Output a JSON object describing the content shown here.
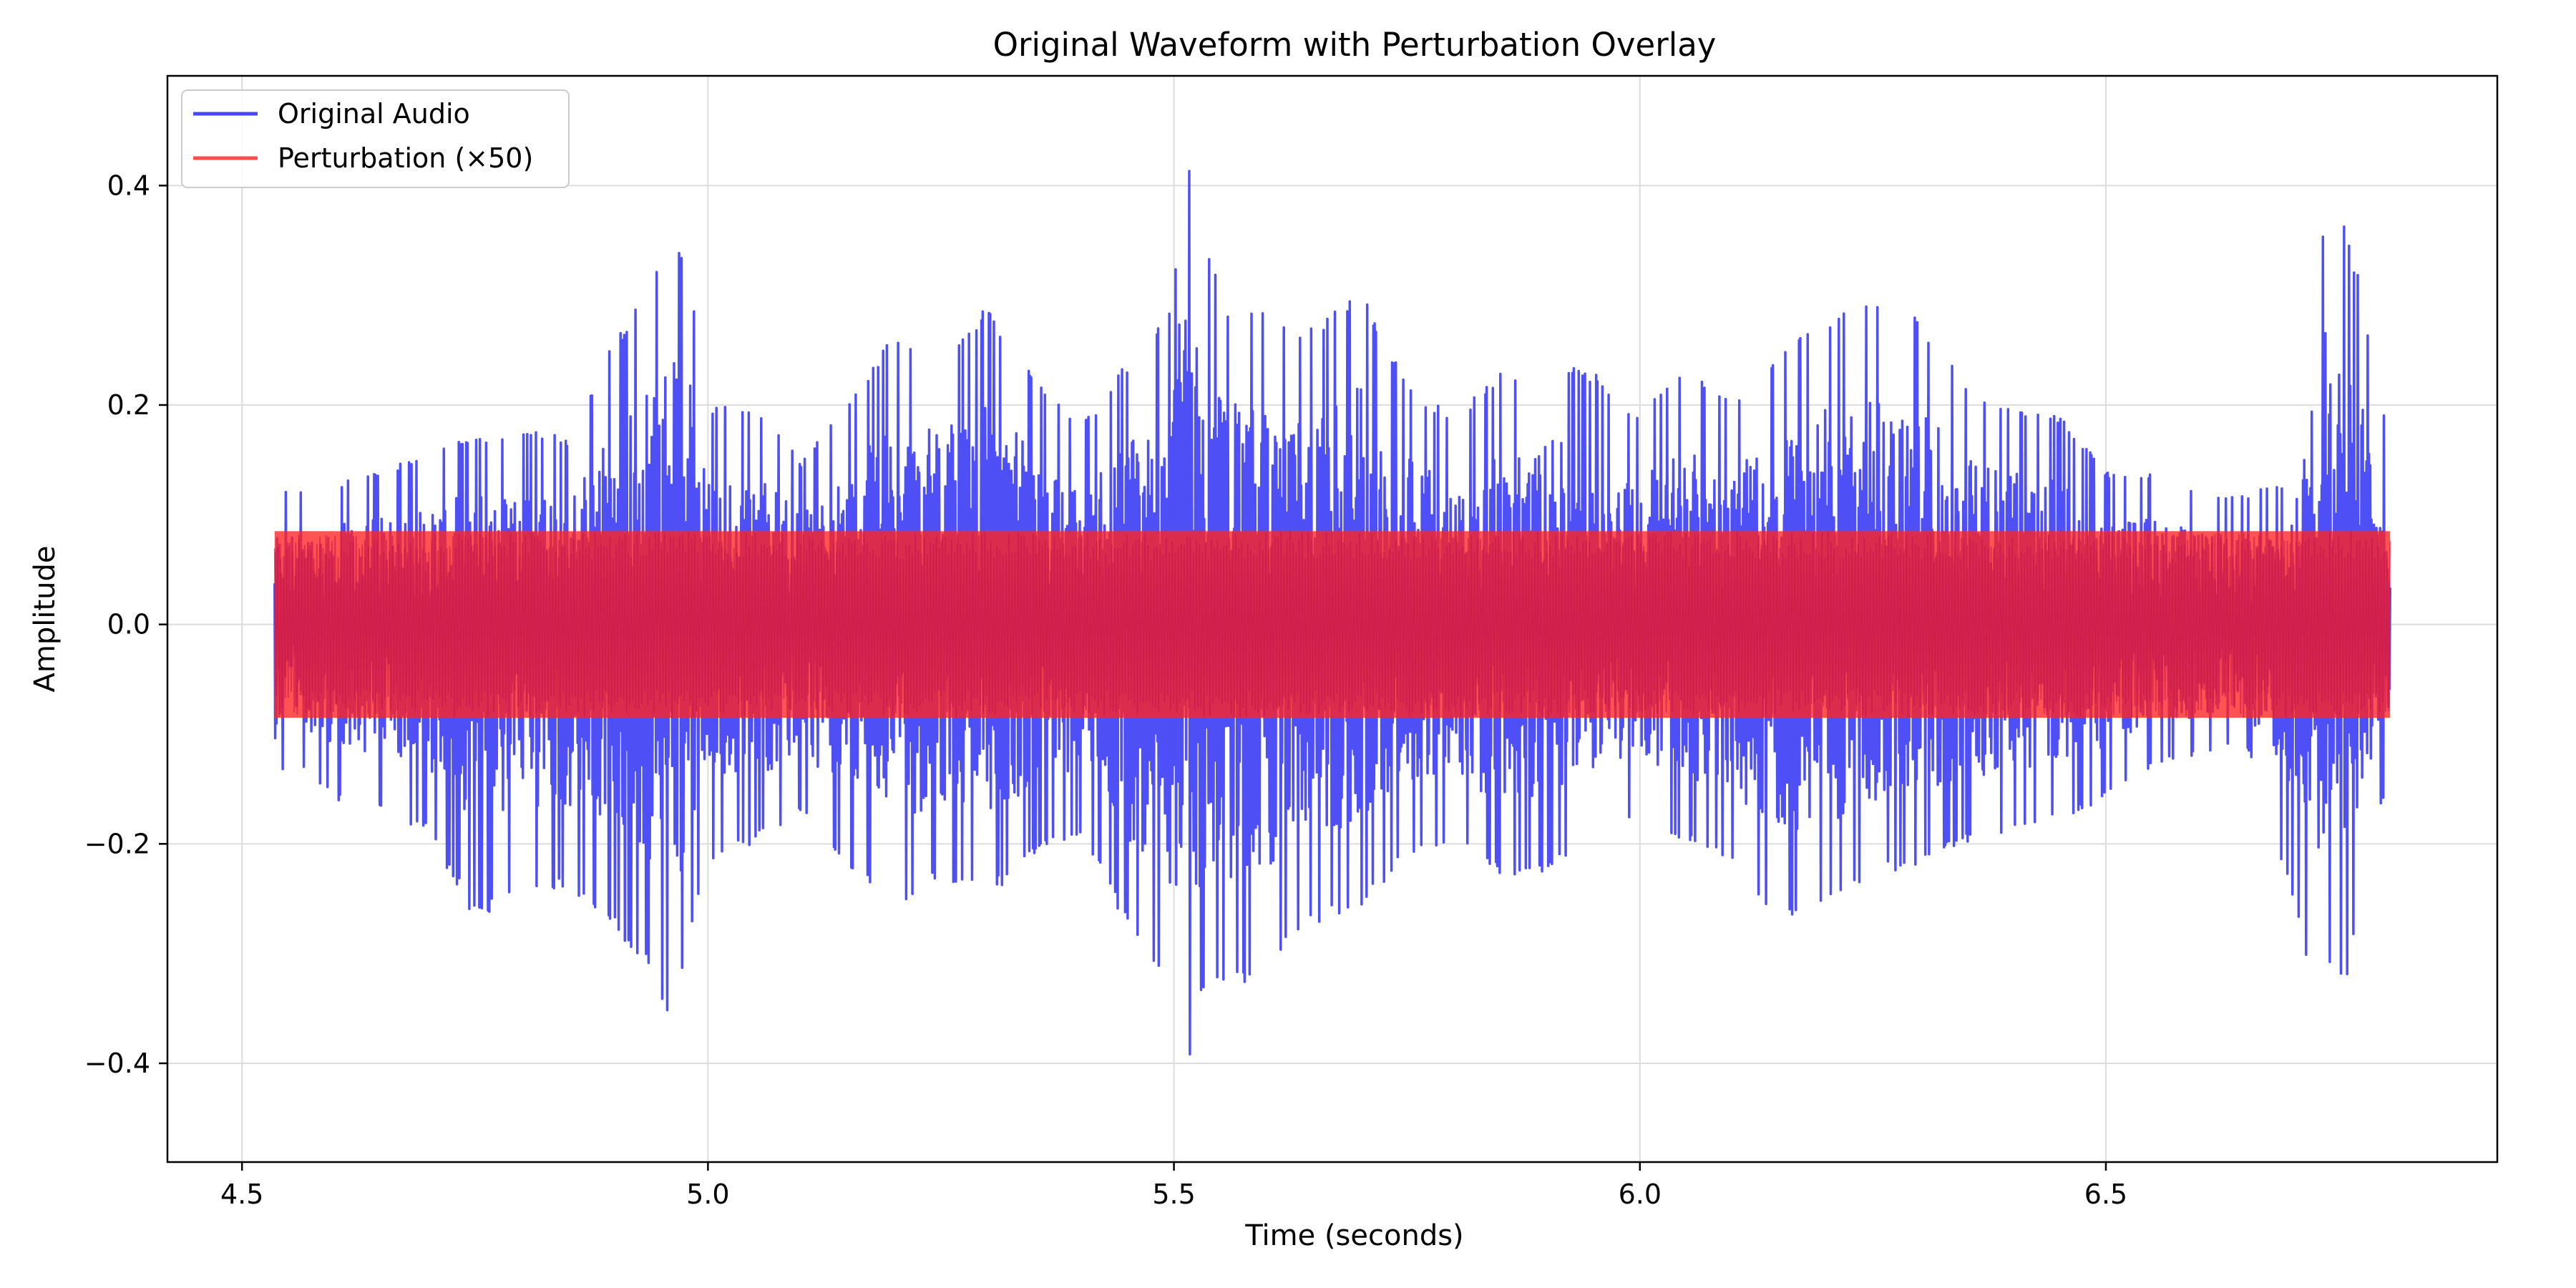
{
  "chart_data": {
    "type": "line",
    "title": "Original Waveform with Perturbation Overlay",
    "xlabel": "Time (seconds)",
    "ylabel": "Amplitude",
    "xlim": [
      4.42,
      6.92
    ],
    "ylim": [
      -0.49,
      0.5
    ],
    "x_ticks": [
      4.5,
      5.0,
      5.5,
      6.0,
      6.5
    ],
    "x_tick_labels": [
      "4.5",
      "5.0",
      "5.5",
      "6.0",
      "6.5"
    ],
    "y_ticks": [
      0.4,
      0.2,
      0.0,
      -0.2,
      -0.4
    ],
    "y_tick_labels": [
      "0.4",
      "0.2",
      "0.0",
      "−0.2",
      "−0.4"
    ],
    "grid": true,
    "legend_position": "top-left",
    "x_range": [
      4.535,
      6.805
    ],
    "series": [
      {
        "name": "Original Audio",
        "color": "#4646f5",
        "envelope": {
          "x": [
            4.535,
            4.55,
            4.6,
            4.65,
            4.7,
            4.75,
            4.8,
            4.85,
            4.9,
            4.93,
            4.96,
            4.98,
            5.0,
            5.05,
            5.1,
            5.15,
            5.2,
            5.25,
            5.3,
            5.35,
            5.4,
            5.45,
            5.5,
            5.51,
            5.53,
            5.56,
            5.6,
            5.63,
            5.66,
            5.7,
            5.75,
            5.8,
            5.85,
            5.9,
            5.95,
            6.0,
            6.05,
            6.1,
            6.15,
            6.2,
            6.25,
            6.3,
            6.35,
            6.4,
            6.45,
            6.5,
            6.55,
            6.6,
            6.65,
            6.7,
            6.72,
            6.74,
            6.76,
            6.78,
            6.805
          ],
          "upper": [
            0.14,
            0.12,
            0.13,
            0.14,
            0.16,
            0.17,
            0.18,
            0.17,
            0.26,
            0.3,
            0.35,
            0.33,
            0.2,
            0.2,
            0.15,
            0.2,
            0.27,
            0.25,
            0.29,
            0.23,
            0.18,
            0.24,
            0.3,
            0.46,
            0.35,
            0.29,
            0.29,
            0.26,
            0.28,
            0.31,
            0.22,
            0.19,
            0.23,
            0.24,
            0.23,
            0.19,
            0.24,
            0.2,
            0.25,
            0.28,
            0.3,
            0.28,
            0.22,
            0.2,
            0.19,
            0.14,
            0.14,
            0.12,
            0.12,
            0.13,
            0.29,
            0.41,
            0.36,
            0.28,
            0.17
          ],
          "lower": [
            -0.15,
            -0.12,
            -0.16,
            -0.17,
            -0.19,
            -0.27,
            -0.25,
            -0.24,
            -0.28,
            -0.31,
            -0.36,
            -0.29,
            -0.22,
            -0.2,
            -0.17,
            -0.22,
            -0.26,
            -0.23,
            -0.25,
            -0.21,
            -0.19,
            -0.28,
            -0.35,
            -0.44,
            -0.34,
            -0.33,
            -0.33,
            -0.28,
            -0.27,
            -0.26,
            -0.21,
            -0.2,
            -0.23,
            -0.23,
            -0.19,
            -0.18,
            -0.2,
            -0.22,
            -0.27,
            -0.26,
            -0.23,
            -0.22,
            -0.2,
            -0.19,
            -0.18,
            -0.16,
            -0.13,
            -0.12,
            -0.11,
            -0.25,
            -0.33,
            -0.31,
            -0.33,
            -0.18,
            -0.16
          ]
        }
      },
      {
        "name": "Perturbation (×50)",
        "color": "#ff4b4b",
        "band": [
          -0.085,
          0.085
        ]
      }
    ]
  }
}
